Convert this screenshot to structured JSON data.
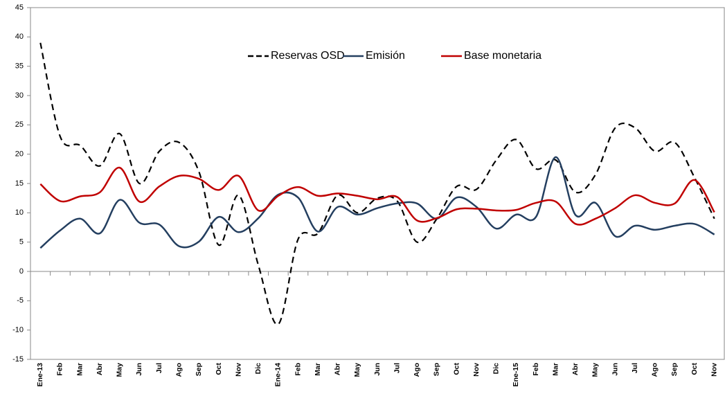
{
  "chart_data": {
    "type": "line",
    "categories": [
      "Ene-13",
      "Feb",
      "Mar",
      "Abr",
      "May",
      "Jun",
      "Jul",
      "Ago",
      "Sep",
      "Oct",
      "Nov",
      "Dic",
      "Ene-14",
      "Feb",
      "Mar",
      "Abr",
      "May",
      "Jun",
      "Jul",
      "Ago",
      "Sep",
      "Oct",
      "Nov",
      "Dic",
      "Ene-15",
      "Feb",
      "Mar",
      "Abr",
      "May",
      "Jun",
      "Jul",
      "Ago",
      "Sep",
      "Oct",
      "Nov"
    ],
    "series": [
      {
        "name": "Reservas OSD",
        "color": "#000000",
        "dashed": true,
        "values": [
          39,
          23,
          21.5,
          18,
          23.5,
          15,
          20.5,
          22,
          17,
          4.5,
          13,
          1,
          -9,
          5.5,
          6.5,
          13,
          10,
          12.5,
          12,
          5,
          9,
          14.5,
          14,
          19,
          22.5,
          17.5,
          19,
          13.5,
          16.5,
          24.5,
          24.5,
          20.5,
          22,
          16,
          9
        ]
      },
      {
        "name": "Emisión",
        "color": "#243f60",
        "dashed": false,
        "values": [
          4,
          7,
          9,
          6.5,
          12.2,
          8.3,
          8,
          4.3,
          5.1,
          9.3,
          6.7,
          9.1,
          13.1,
          12.6,
          6.8,
          11,
          9.7,
          10.8,
          11.6,
          11.6,
          9,
          12.6,
          11,
          7.3,
          9.7,
          9.3,
          19.5,
          9.6,
          11.7,
          6,
          7.8,
          7.1,
          7.8,
          8.1,
          6.3
        ]
      },
      {
        "name": "Base monetaria",
        "color": "#c00000",
        "dashed": false,
        "values": [
          14.9,
          12,
          12.8,
          13.5,
          17.7,
          11.9,
          14.5,
          16.3,
          15.8,
          13.9,
          16.3,
          10.4,
          12.9,
          14.4,
          12.9,
          13.3,
          12.9,
          12.3,
          12.7,
          8.7,
          9.1,
          10.6,
          10.7,
          10.4,
          10.5,
          11.7,
          11.9,
          8.1,
          9,
          10.8,
          13,
          11.7,
          11.6,
          15.6,
          10.1
        ]
      }
    ],
    "ylim": [
      -15,
      45
    ],
    "yticks": [
      -15,
      -10,
      -5,
      0,
      5,
      10,
      15,
      20,
      25,
      30,
      35,
      40,
      45
    ],
    "legend": "top",
    "grid": false
  }
}
